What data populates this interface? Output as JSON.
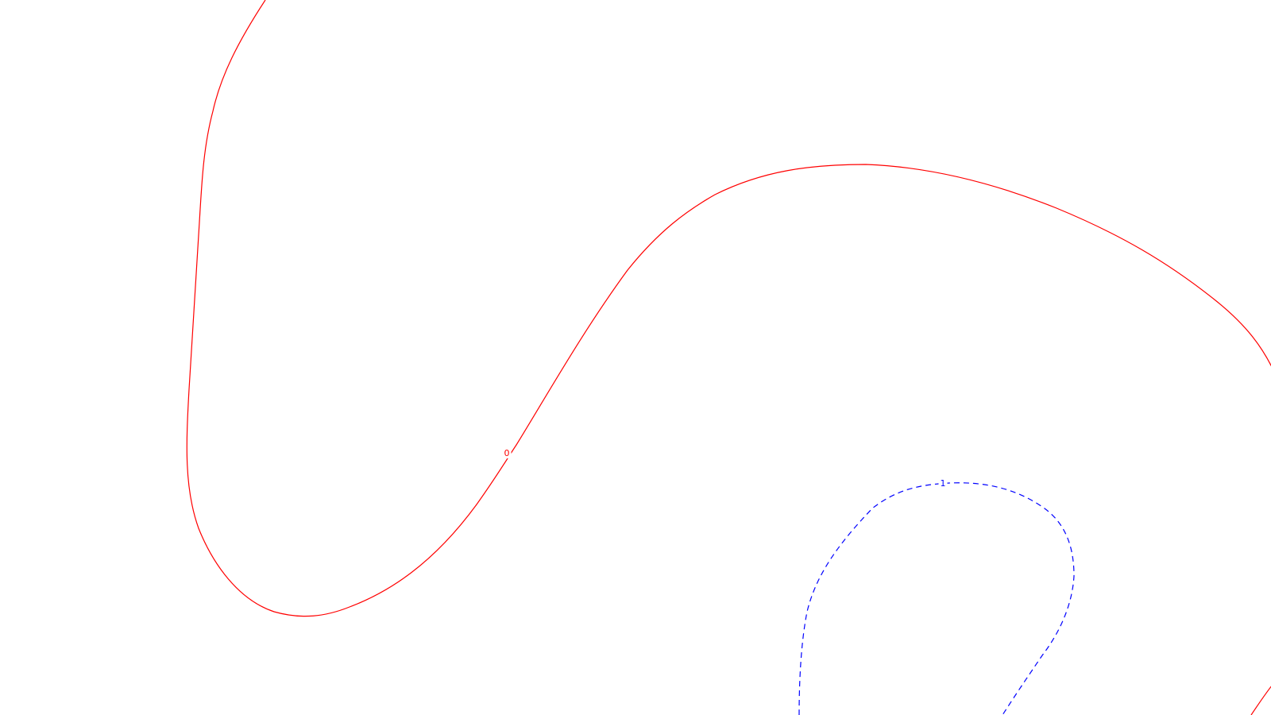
{
  "chart_data": {
    "type": "contour",
    "title": "",
    "xlabel": "",
    "ylabel": "",
    "grid": false,
    "legend": "none",
    "series": [
      {
        "level_label": "0",
        "color": "#ff0000",
        "dashed": false
      },
      {
        "level_label": "1",
        "color": "#0000ff",
        "dashed": true
      }
    ]
  }
}
